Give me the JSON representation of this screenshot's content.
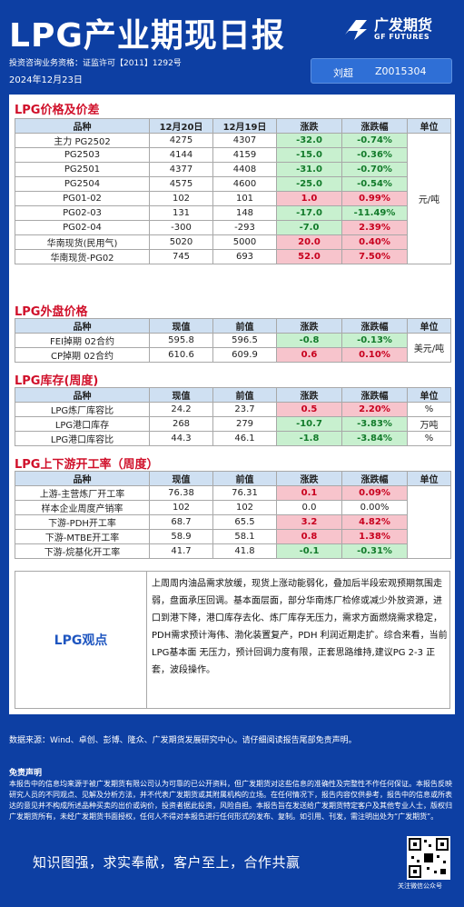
{
  "header": {
    "title": "LPG产业期现日报",
    "license": "投资咨询业务资格：证监许可【2011】1292号",
    "date": "2024年12月23日",
    "logo_cn": "广发期货",
    "logo_en": "GF FUTURES",
    "analyst_name": "刘超",
    "analyst_code": "Z0015304"
  },
  "sections": {
    "price": "LPG价格及价差",
    "overseas": "LPG外盘价格",
    "inventory": "LPG库存(周度)",
    "operating": "LPG上下游开工率（周度）"
  },
  "price_table": {
    "headers": [
      "品种",
      "12月20日",
      "12月19日",
      "涨跌",
      "涨跌幅",
      "单位"
    ],
    "unit": "元/吨",
    "rows": [
      {
        "name": "主力 PG2502",
        "a": "4275",
        "b": "4307",
        "chg": "-32.0",
        "pct": "-0.74%"
      },
      {
        "name": "PG2503",
        "a": "4144",
        "b": "4159",
        "chg": "-15.0",
        "pct": "-0.36%"
      },
      {
        "name": "PG2501",
        "a": "4377",
        "b": "4408",
        "chg": "-31.0",
        "pct": "-0.70%"
      },
      {
        "name": "PG2504",
        "a": "4575",
        "b": "4600",
        "chg": "-25.0",
        "pct": "-0.54%"
      },
      {
        "name": "PG01-02",
        "a": "102",
        "b": "101",
        "chg": "1.0",
        "pct": "0.99%"
      },
      {
        "name": "PG02-03",
        "a": "131",
        "b": "148",
        "chg": "-17.0",
        "pct": "-11.49%"
      },
      {
        "name": "PG02-04",
        "a": "-300",
        "b": "-293",
        "chg": "-7.0",
        "pct": "2.39%"
      },
      {
        "name": "华南现货(民用气)",
        "a": "5020",
        "b": "5000",
        "chg": "20.0",
        "pct": "0.40%"
      },
      {
        "name": "华南现货-PG02",
        "a": "745",
        "b": "693",
        "chg": "52.0",
        "pct": "7.50%"
      }
    ]
  },
  "overseas_table": {
    "headers": [
      "品种",
      "现值",
      "前值",
      "涨跌",
      "涨跌幅",
      "单位"
    ],
    "unit": "美元/吨",
    "rows": [
      {
        "name": "FEI掉期 02合约",
        "a": "595.8",
        "b": "596.5",
        "chg": "-0.8",
        "pct": "-0.13%"
      },
      {
        "name": "CP掉期 02合约",
        "a": "610.6",
        "b": "609.9",
        "chg": "0.6",
        "pct": "0.10%"
      }
    ]
  },
  "inventory_table": {
    "headers": [
      "品种",
      "现值",
      "前值",
      "涨跌",
      "涨跌幅",
      "单位"
    ],
    "rows": [
      {
        "name": "LPG炼厂库容比",
        "a": "24.2",
        "b": "23.7",
        "chg": "0.5",
        "pct": "2.20%",
        "unit": "%"
      },
      {
        "name": "LPG港口库存",
        "a": "268",
        "b": "279",
        "chg": "-10.7",
        "pct": "-3.83%",
        "unit": "万吨"
      },
      {
        "name": "LPG港口库容比",
        "a": "44.3",
        "b": "46.1",
        "chg": "-1.8",
        "pct": "-3.84%",
        "unit": "%"
      }
    ]
  },
  "operating_table": {
    "headers": [
      "品种",
      "现值",
      "前值",
      "涨跌",
      "涨跌幅",
      "单位"
    ],
    "rows": [
      {
        "name": "上游-主营炼厂开工率",
        "a": "76.38",
        "b": "76.31",
        "chg": "0.1",
        "pct": "0.09%"
      },
      {
        "name": "样本企业周度产销率",
        "a": "102",
        "b": "102",
        "chg": "0.0",
        "pct": "0.00%"
      },
      {
        "name": "下游-PDH开工率",
        "a": "68.7",
        "b": "65.5",
        "chg": "3.2",
        "pct": "4.82%"
      },
      {
        "name": "下游-MTBE开工率",
        "a": "58.9",
        "b": "58.1",
        "chg": "0.8",
        "pct": "1.38%"
      },
      {
        "name": "下游-烷基化开工率",
        "a": "41.7",
        "b": "41.8",
        "chg": "-0.1",
        "pct": "-0.31%"
      }
    ]
  },
  "view": {
    "label": "LPG观点",
    "text": "上周周内油品需求放缓，现货上涨动能弱化，叠加后半段宏观预期氛围走弱，盘面承压回调。基本面层面，部分华南炼厂检修或减少外放资源，进口到港下降，港口库存去化、炼厂库存无压力，需求方面燃烧需求稳定，PDH需求预计海伟、渤化装置复产，PDH 利润近期走扩。综合来看，当前LPG基本面 无压力，预计回调力度有限，正套思路维持,建议PG 2-3 正套，波段操作。"
  },
  "footer": {
    "source": "数据来源：Wind、卓创、彭博、隆众、广发期货发展研究中心。请仔细阅读报告尾部免责声明。",
    "disclaimer_title": "免责声明",
    "disclaimer": "本报告中的信息均来源于被广发期货有限公司认为可靠的已公开资料，但广发期货对这些信息的准确性及完整性不作任何保证。本报告反映研究人员的不同观点、见解及分析方法，并不代表广发期货或其附属机构的立场。在任何情况下，报告内容仅供参考，报告中的信息或所表达的意见并不构成所述品种买卖的出价或询价，投资者据此投资，风险自担。本报告旨在发送给广发期货特定客户及其他专业人士，版权归广发期货所有，未经广发期货书面授权，任何人不得对本报告进行任何形式的发布、复制。如引用、刊发，需注明出处为“广发期货”。",
    "slogan": "知识图强，求实奉献，客户至上，合作共赢",
    "qr_caption": "关注微信公众号"
  },
  "colors": {
    "brand_blue": "#0d3fa3",
    "up_fill": "#f7c4cc",
    "down_fill": "#c8f0cf",
    "section_red": "#d0102a"
  }
}
